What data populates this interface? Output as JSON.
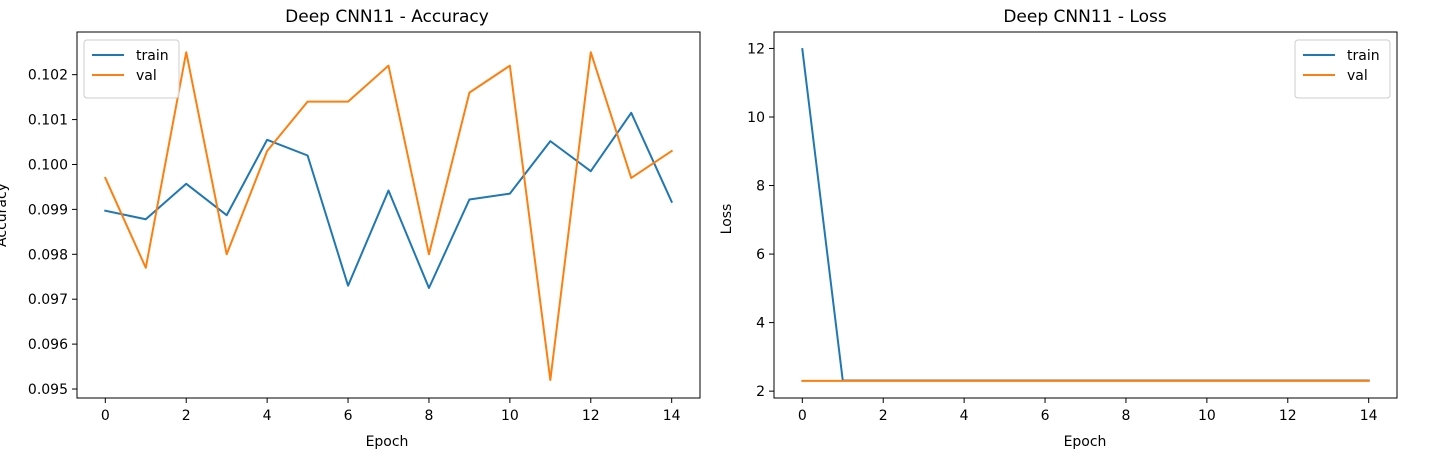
{
  "chart_data": [
    {
      "type": "line",
      "title": "Deep CNN11 - Accuracy",
      "xlabel": "Epoch",
      "ylabel": "Accuracy",
      "x": [
        0,
        1,
        2,
        3,
        4,
        5,
        6,
        7,
        8,
        9,
        10,
        11,
        12,
        13,
        14
      ],
      "xlim": [
        -0.7,
        14.7
      ],
      "ylim": [
        0.0948,
        0.10295
      ],
      "xticks": [
        0,
        2,
        4,
        6,
        8,
        10,
        12,
        14
      ],
      "yticks": [
        0.095,
        0.096,
        0.097,
        0.098,
        0.099,
        0.1,
        0.101,
        0.102
      ],
      "ytick_labels": [
        "0.095",
        "0.096",
        "0.097",
        "0.098",
        "0.099",
        "0.100",
        "0.101",
        "0.102"
      ],
      "grid": false,
      "legend_position": "upper-left",
      "series": [
        {
          "name": "train",
          "color": "#1f77b4",
          "values": [
            0.09897,
            0.09878,
            0.09957,
            0.09887,
            0.10055,
            0.1002,
            0.0973,
            0.09942,
            0.09725,
            0.09922,
            0.09935,
            0.10052,
            0.09985,
            0.10115,
            0.09917
          ]
        },
        {
          "name": "val",
          "color": "#ff7f0e",
          "values": [
            0.0997,
            0.0977,
            0.1025,
            0.098,
            0.1003,
            0.1014,
            0.1014,
            0.1022,
            0.098,
            0.1016,
            0.1022,
            0.0952,
            0.1025,
            0.0997,
            0.1003
          ]
        }
      ]
    },
    {
      "type": "line",
      "title": "Deep CNN11 - Loss",
      "xlabel": "Epoch",
      "ylabel": "Loss",
      "x": [
        0,
        1,
        2,
        3,
        4,
        5,
        6,
        7,
        8,
        9,
        10,
        11,
        12,
        13,
        14
      ],
      "xlim": [
        -0.7,
        14.7
      ],
      "ylim": [
        1.8,
        12.48
      ],
      "xticks": [
        0,
        2,
        4,
        6,
        8,
        10,
        12,
        14
      ],
      "yticks": [
        2,
        4,
        6,
        8,
        10,
        12
      ],
      "ytick_labels": [
        "2",
        "4",
        "6",
        "8",
        "10",
        "12"
      ],
      "grid": false,
      "legend_position": "upper-right",
      "series": [
        {
          "name": "train",
          "color": "#1f77b4",
          "values": [
            11.98,
            2.31,
            2.31,
            2.31,
            2.31,
            2.31,
            2.31,
            2.31,
            2.31,
            2.31,
            2.31,
            2.31,
            2.31,
            2.31,
            2.31
          ]
        },
        {
          "name": "val",
          "color": "#ff7f0e",
          "values": [
            2.3,
            2.3,
            2.3,
            2.3,
            2.3,
            2.3,
            2.3,
            2.3,
            2.3,
            2.3,
            2.3,
            2.3,
            2.3,
            2.3,
            2.3
          ]
        }
      ]
    }
  ]
}
